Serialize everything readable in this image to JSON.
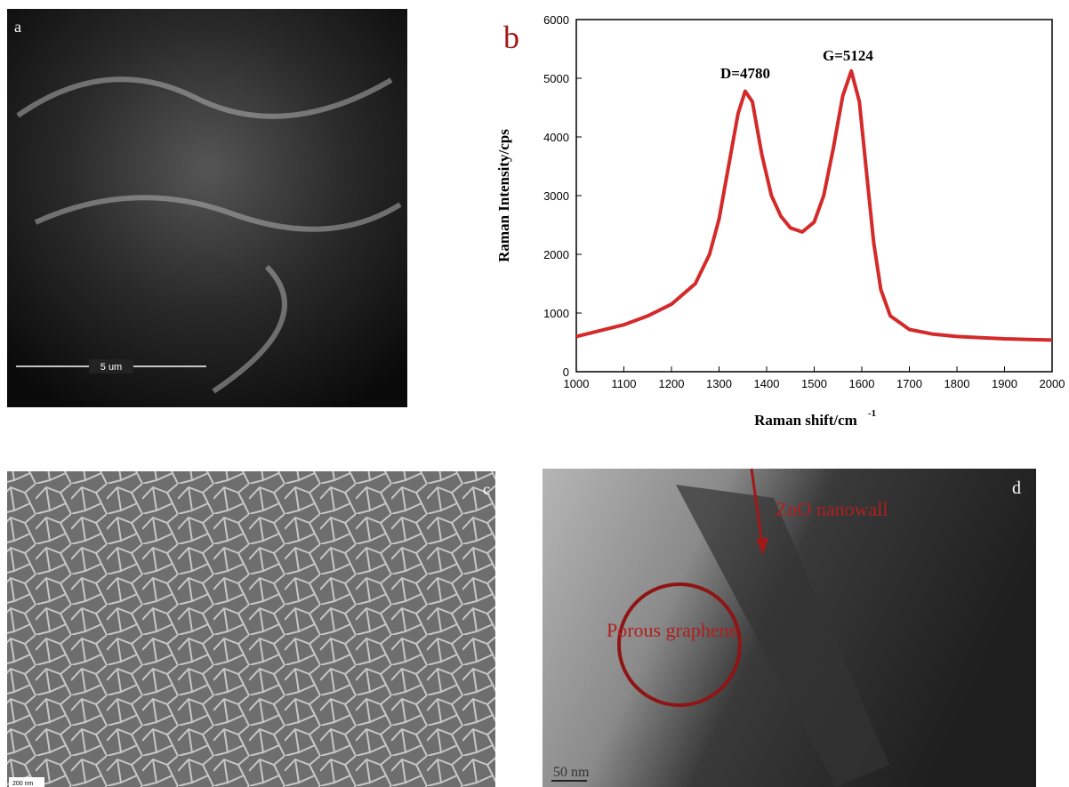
{
  "panel_a": {
    "label": "a",
    "scale_bar": "5 um"
  },
  "chart_data": {
    "type": "line",
    "panel_label": "b",
    "xlabel": "Raman shift/cm",
    "xlabel_superscript": "-1",
    "ylabel": "Raman Intensity/cps",
    "annotations": [
      "D=4780",
      "G=5124"
    ],
    "color": "#d42a2a",
    "x": [
      1000,
      1050,
      1100,
      1150,
      1200,
      1250,
      1280,
      1300,
      1320,
      1340,
      1355,
      1370,
      1390,
      1410,
      1430,
      1450,
      1475,
      1500,
      1520,
      1540,
      1560,
      1578,
      1595,
      1610,
      1625,
      1640,
      1660,
      1700,
      1750,
      1800,
      1850,
      1900,
      1950,
      2000
    ],
    "values": [
      600,
      700,
      800,
      950,
      1150,
      1500,
      2000,
      2600,
      3500,
      4400,
      4780,
      4600,
      3700,
      3000,
      2650,
      2450,
      2380,
      2550,
      3000,
      3800,
      4700,
      5124,
      4600,
      3400,
      2200,
      1400,
      950,
      720,
      640,
      600,
      580,
      560,
      550,
      540
    ],
    "xlim": [
      1000,
      2000
    ],
    "ylim": [
      0,
      6000
    ],
    "xticks": [
      1000,
      1100,
      1200,
      1300,
      1400,
      1500,
      1600,
      1700,
      1800,
      1900,
      2000
    ],
    "yticks": [
      0,
      1000,
      2000,
      3000,
      4000,
      5000,
      6000
    ]
  },
  "panel_c": {
    "label": "c",
    "scale_bar": "200 nm"
  },
  "panel_d": {
    "label": "d",
    "arrow_label": "ZnO nanowall",
    "circle_label": "Porous graphene",
    "scale_bar": "50 nm"
  }
}
